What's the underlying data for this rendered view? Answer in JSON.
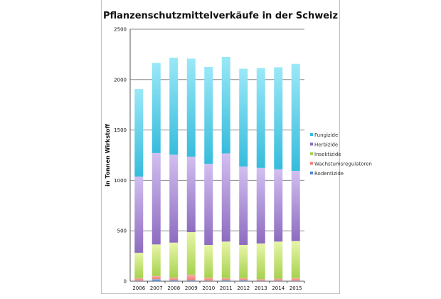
{
  "chart_data": {
    "type": "bar",
    "stacked": true,
    "title": "Pflanzenschutzmittelverkäufe in der Schweiz",
    "xlabel": "",
    "ylabel": "in Tonnen Wirkstoff",
    "ylim": [
      0,
      2500
    ],
    "yticks": [
      "0",
      "500",
      "1000",
      "1500",
      "2000",
      "2500"
    ],
    "grid": true,
    "legend_position": "right",
    "categories": [
      "2006",
      "2007",
      "2008",
      "2009",
      "2010",
      "2011",
      "2012",
      "2013",
      "2014",
      "2015"
    ],
    "series": [
      {
        "name": "Rodentizide",
        "color": "#4f86c6",
        "values": [
          5,
          20,
          10,
          10,
          5,
          10,
          10,
          5,
          5,
          5
        ]
      },
      {
        "name": "Wachstumsregulatoren",
        "color": "#ee7f78",
        "values": [
          25,
          32,
          25,
          54,
          30,
          20,
          20,
          15,
          20,
          25
        ]
      },
      {
        "name": "Insektizide",
        "color": "#a6d24f",
        "values": [
          252,
          313,
          348,
          423,
          325,
          363,
          330,
          354,
          368,
          368
        ]
      },
      {
        "name": "Herbizide",
        "color": "#8d6cc0",
        "values": [
          756,
          907,
          872,
          749,
          805,
          875,
          778,
          750,
          717,
          696
        ]
      },
      {
        "name": "Fungizide",
        "color": "#37bcdc",
        "values": [
          868,
          894,
          963,
          972,
          961,
          957,
          970,
          990,
          1013,
          1062
        ]
      }
    ],
    "legend_order": [
      "Fungizide",
      "Herbizide",
      "Insektizide",
      "Wachstumsregulatoren",
      "Rodentizide"
    ]
  }
}
